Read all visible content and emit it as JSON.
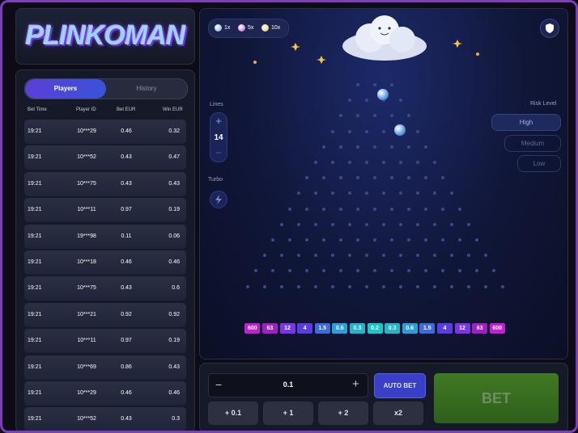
{
  "logo": "PLINKOMAN",
  "tabs": [
    "Players",
    "History"
  ],
  "table": {
    "headers": [
      "Bet Time",
      "Player ID",
      "Bet  EUR",
      "Win  EUR"
    ],
    "rows": [
      [
        "19:21",
        "10***29",
        "0.46",
        "0.32"
      ],
      [
        "19:21",
        "10***52",
        "0.43",
        "0.47"
      ],
      [
        "19:21",
        "10***75",
        "0.43",
        "0.43"
      ],
      [
        "19:21",
        "10***11",
        "0.97",
        "0.19"
      ],
      [
        "19:21",
        "19***98",
        "0.11",
        "0.06"
      ],
      [
        "19:21",
        "10***18",
        "0.46",
        "0.46"
      ],
      [
        "19:21",
        "10***75",
        "0.43",
        "0.6"
      ],
      [
        "19:21",
        "10***21",
        "0.92",
        "0.92"
      ],
      [
        "19:21",
        "10***11",
        "0.97",
        "0.19"
      ],
      [
        "19:21",
        "10***69",
        "0.86",
        "0.43"
      ],
      [
        "19:21",
        "10***29",
        "0.46",
        "0.46"
      ],
      [
        "19:21",
        "10***52",
        "0.43",
        "0.3"
      ]
    ]
  },
  "balls": [
    "1x",
    "5x",
    "10x"
  ],
  "lines": {
    "label": "Lines",
    "plus": "+",
    "value": "14",
    "minus": "−"
  },
  "turbo": "Turbo",
  "risk": {
    "label": "Risk Level",
    "options": [
      "High",
      "Medium",
      "Low"
    ]
  },
  "multipliers": [
    "600",
    "63",
    "12",
    "4",
    "1.5",
    "0.6",
    "0.3",
    "0.2",
    "0.3",
    "0.6",
    "1.5",
    "4",
    "12",
    "63",
    "600"
  ],
  "bet": {
    "minus": "−",
    "amount": "0.1",
    "plus": "+",
    "auto": "AUTO BET",
    "bet": "BET",
    "quick": [
      "+ 0.1",
      "+ 1",
      "+ 2",
      "x2"
    ]
  }
}
